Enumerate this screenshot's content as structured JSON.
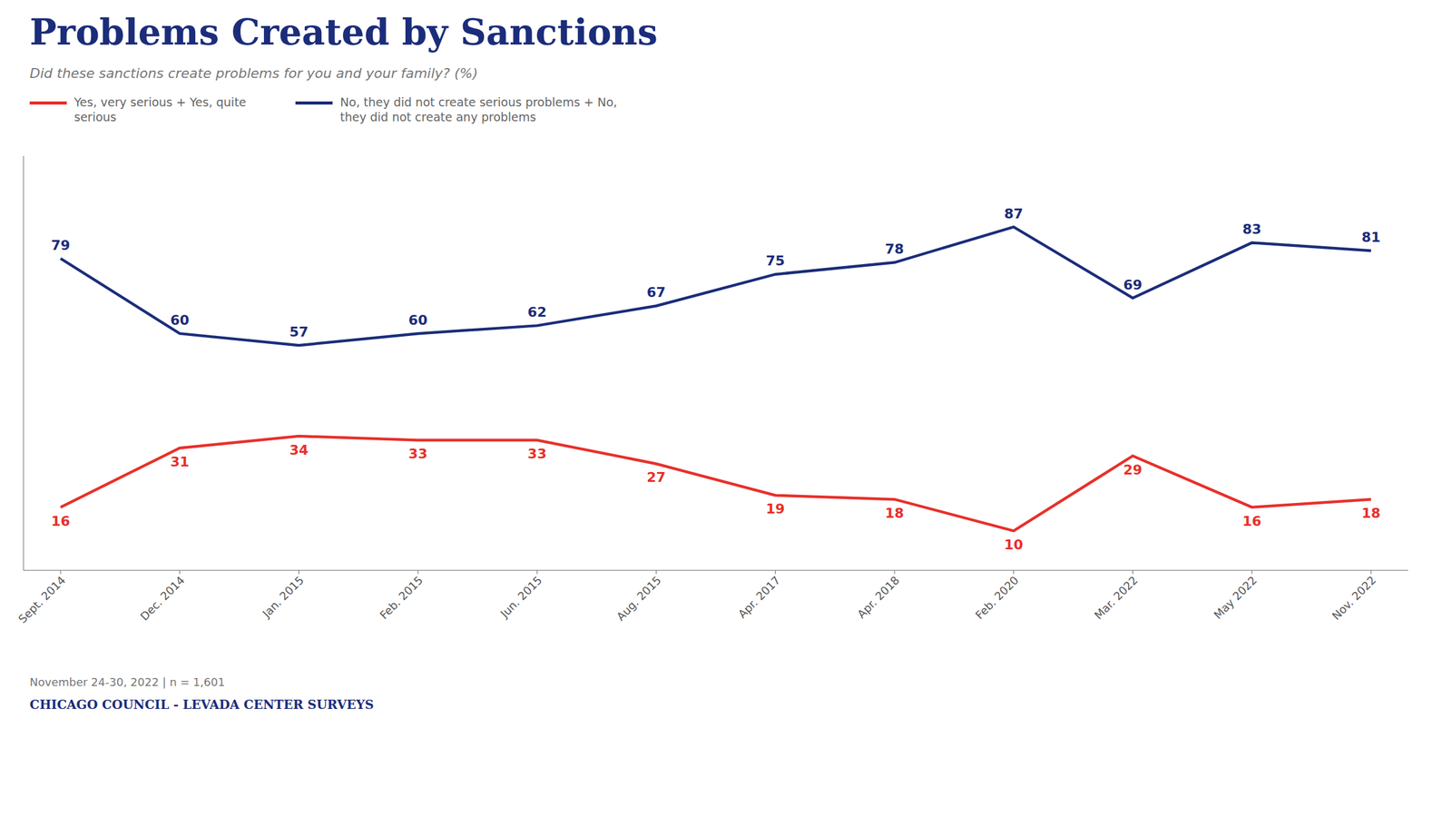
{
  "chart_data": {
    "type": "line",
    "title": "Problems Created by Sanctions",
    "subtitle": "Did these sanctions create problems for you and your family? (%)",
    "annotations": [
      "November 24-30, 2022 | n = 1,601",
      "CHICAGO COUNCIL - LEVADA CENTER SURVEYS"
    ],
    "categories": [
      "Sept. 2014",
      "Dec. 2014",
      "Jan. 2015",
      "Feb. 2015",
      "Jun. 2015",
      "Aug. 2015",
      "Apr. 2017",
      "Apr. 2018",
      "Feb. 2020",
      "Mar. 2022",
      "May 2022",
      "Nov. 2022"
    ],
    "series": [
      {
        "name": "No, they did not create serious problems + No,\nthey did not create any problems",
        "color": "#1b2d7a",
        "values": [
          79,
          60,
          57,
          60,
          62,
          67,
          75,
          78,
          87,
          69,
          83,
          81
        ]
      },
      {
        "name": "Yes, very serious + Yes, quite\nserious",
        "color": "#e8302a",
        "values": [
          16,
          31,
          34,
          33,
          33,
          27,
          19,
          18,
          10,
          29,
          16,
          18
        ]
      }
    ],
    "ylim": [
      0,
      105
    ],
    "grid": false,
    "legend": "top-left",
    "data_labels": true,
    "tick_labels": "x"
  }
}
